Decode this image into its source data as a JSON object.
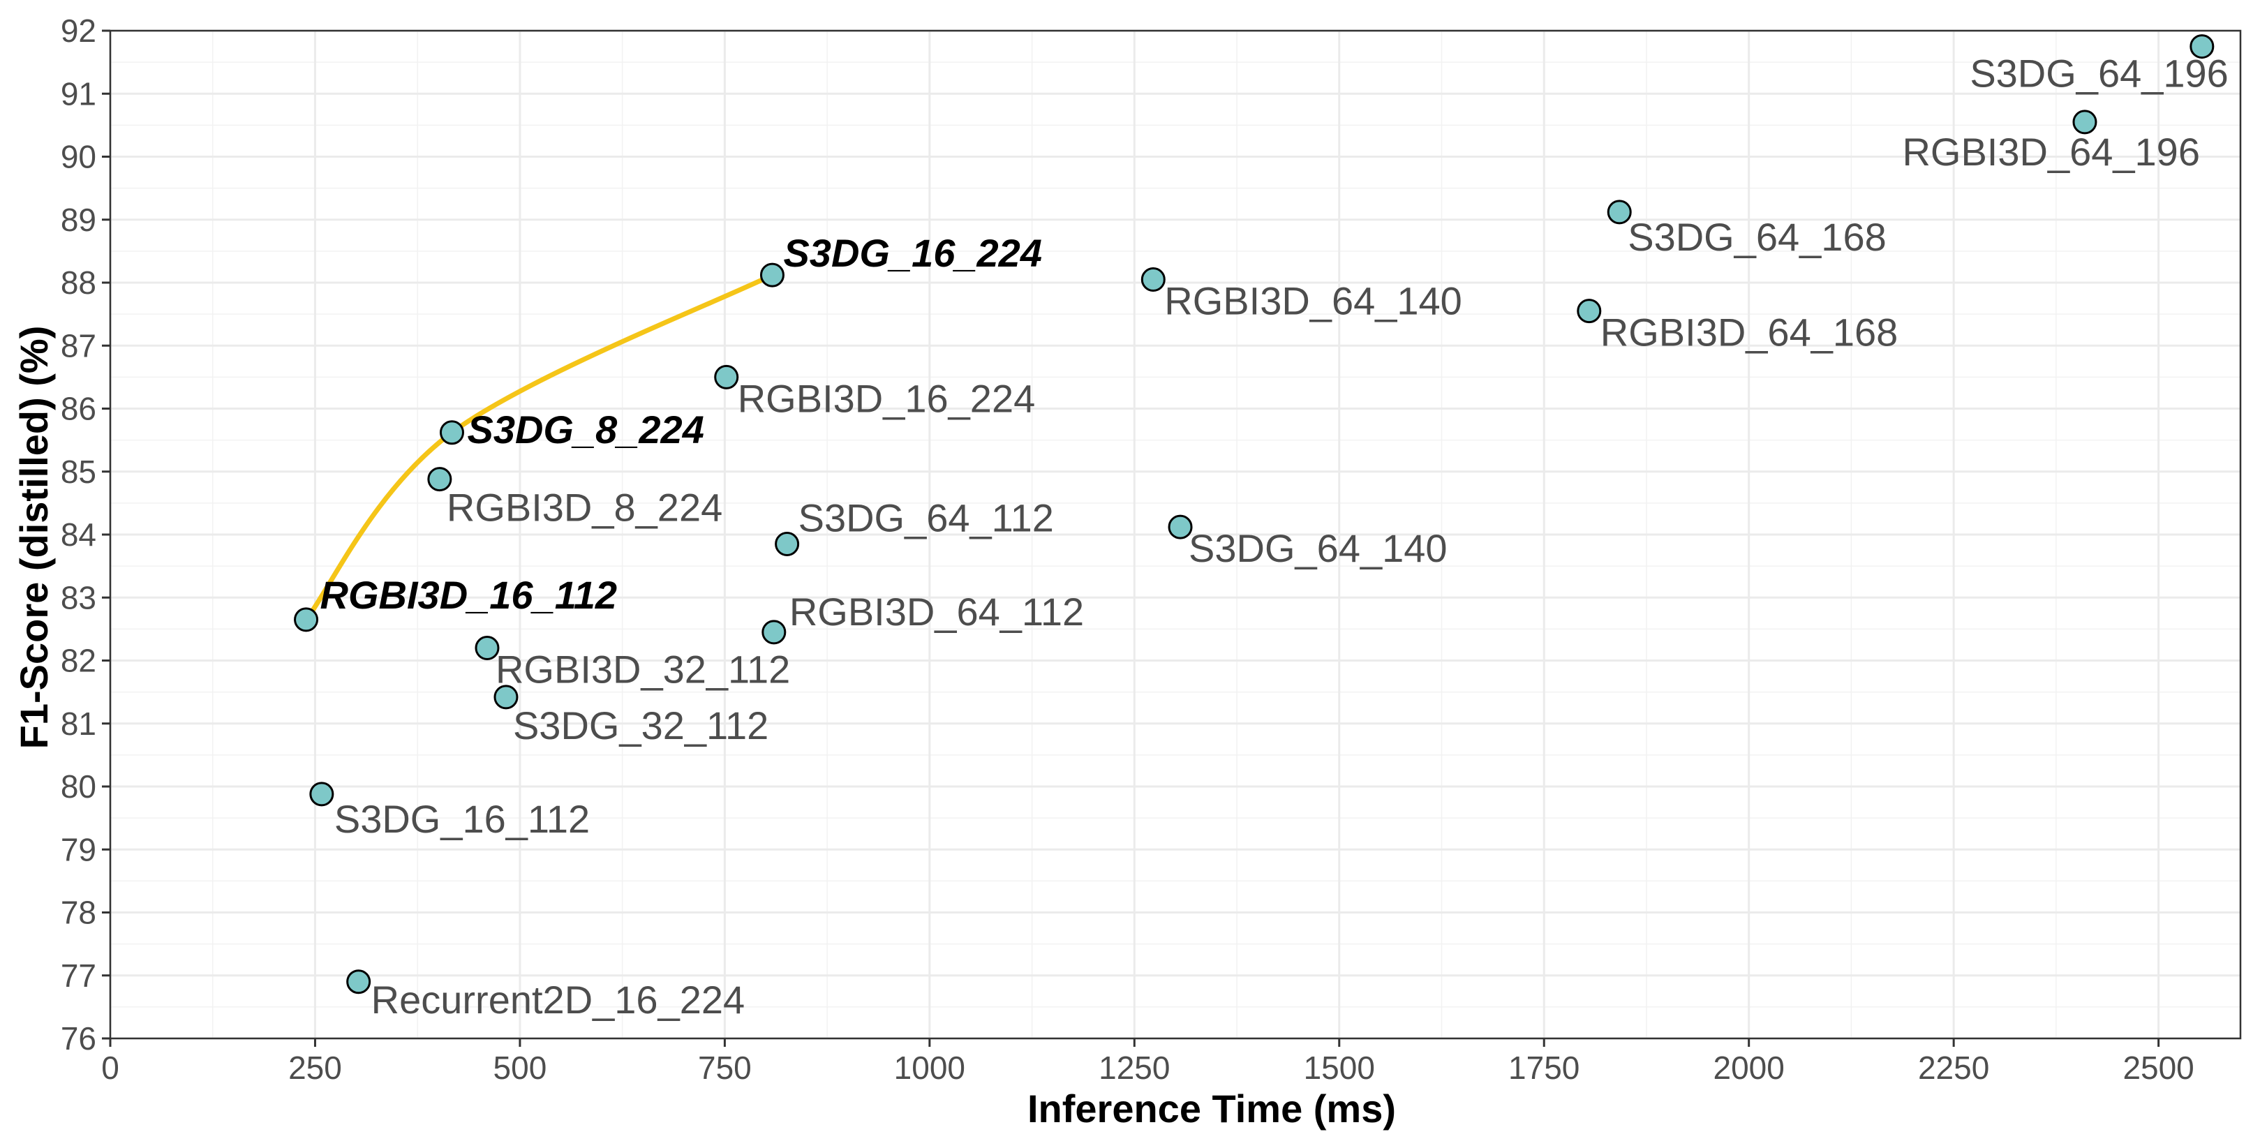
{
  "chart_data": {
    "type": "scatter",
    "title": "",
    "xlabel": "Inference Time (ms)",
    "ylabel": "F1-Score (distilled) (%)",
    "xlim": [
      0,
      2600
    ],
    "ylim": [
      76,
      92
    ],
    "xticks": [
      0,
      250,
      500,
      750,
      1000,
      1250,
      1500,
      1750,
      2000,
      2250,
      2500
    ],
    "yticks": [
      76,
      77,
      78,
      79,
      80,
      81,
      82,
      83,
      84,
      85,
      86,
      87,
      88,
      89,
      90,
      91,
      92
    ],
    "grid": true,
    "point_color": "#7ec8c8",
    "frontier_color": "#f5c518",
    "frontier": [
      "RGBI3D_16_112",
      "S3DG_8_224",
      "S3DG_16_224"
    ],
    "points": [
      {
        "label": "S3DG_64_196",
        "x": 2553,
        "y": 91.75,
        "highlight": false,
        "anchor": "end",
        "dx": 38,
        "dy": 58
      },
      {
        "label": "RGBI3D_64_196",
        "x": 2410,
        "y": 90.55,
        "highlight": false,
        "anchor": "end",
        "dx": 165,
        "dy": 62
      },
      {
        "label": "S3DG_64_168",
        "x": 1842,
        "y": 89.12,
        "highlight": false,
        "anchor": "start",
        "dx": 12,
        "dy": 55
      },
      {
        "label": "RGBI3D_64_140",
        "x": 1273,
        "y": 88.05,
        "highlight": false,
        "anchor": "start",
        "dx": 16,
        "dy": 50
      },
      {
        "label": "RGBI3D_64_168",
        "x": 1805,
        "y": 87.55,
        "highlight": false,
        "anchor": "start",
        "dx": 16,
        "dy": 50
      },
      {
        "label": "S3DG_16_224",
        "x": 808,
        "y": 88.12,
        "highlight": true,
        "anchor": "start",
        "dx": 16,
        "dy": -12
      },
      {
        "label": "RGBI3D_16_224",
        "x": 752,
        "y": 86.5,
        "highlight": false,
        "anchor": "start",
        "dx": 16,
        "dy": 50
      },
      {
        "label": "S3DG_8_224",
        "x": 417,
        "y": 85.62,
        "highlight": true,
        "anchor": "start",
        "dx": 22,
        "dy": 15
      },
      {
        "label": "RGBI3D_8_224",
        "x": 402,
        "y": 84.88,
        "highlight": false,
        "anchor": "start",
        "dx": 10,
        "dy": 60
      },
      {
        "label": "S3DG_64_112",
        "x": 826,
        "y": 83.85,
        "highlight": false,
        "anchor": "start",
        "dx": 16,
        "dy": -18
      },
      {
        "label": "S3DG_64_140",
        "x": 1306,
        "y": 84.12,
        "highlight": false,
        "anchor": "start",
        "dx": 12,
        "dy": 50
      },
      {
        "label": "RGBI3D_16_112",
        "x": 239,
        "y": 82.65,
        "highlight": true,
        "anchor": "start",
        "dx": 20,
        "dy": -16
      },
      {
        "label": "RGBI3D_64_112",
        "x": 810,
        "y": 82.45,
        "highlight": false,
        "anchor": "start",
        "dx": 22,
        "dy": -10
      },
      {
        "label": "RGBI3D_32_112",
        "x": 460,
        "y": 82.2,
        "highlight": false,
        "anchor": "start",
        "dx": 12,
        "dy": 50
      },
      {
        "label": "S3DG_32_112",
        "x": 483,
        "y": 81.42,
        "highlight": false,
        "anchor": "start",
        "dx": 10,
        "dy": 60
      },
      {
        "label": "S3DG_16_112",
        "x": 258,
        "y": 79.88,
        "highlight": false,
        "anchor": "start",
        "dx": 18,
        "dy": 55
      },
      {
        "label": "Recurrent2D_16_224",
        "x": 303,
        "y": 76.9,
        "highlight": false,
        "anchor": "start",
        "dx": 18,
        "dy": 45
      }
    ]
  }
}
